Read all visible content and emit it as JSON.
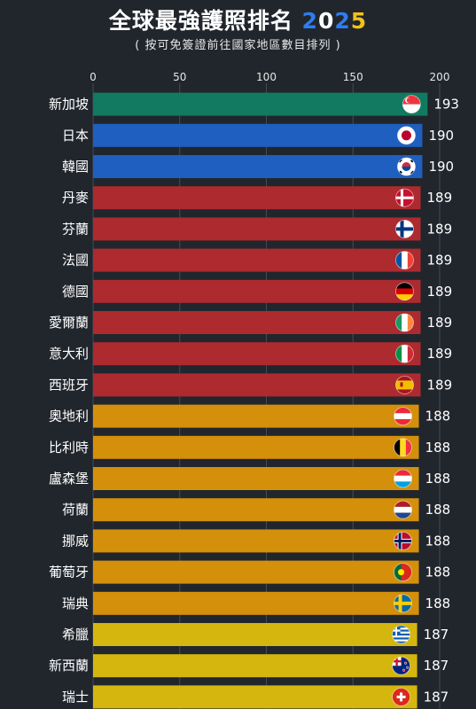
{
  "title_main": "全球最強護照排名 ",
  "title_year": [
    "2",
    "0",
    "2",
    "5"
  ],
  "title_year_colors": [
    "#2e7df0",
    "#ffffff",
    "#2e7df0",
    "#f2c21b"
  ],
  "subtitle": "( 按可免簽證前往國家地區數目排列 )",
  "chart_data": {
    "type": "bar",
    "orientation": "horizontal",
    "xlim": [
      0,
      200
    ],
    "xticks": [
      0,
      50,
      100,
      150,
      200
    ],
    "grid": true,
    "categories": [
      "新加坡",
      "日本",
      "韓國",
      "丹麥",
      "芬蘭",
      "法國",
      "德國",
      "愛爾蘭",
      "意大利",
      "西班牙",
      "奧地利",
      "比利時",
      "盧森堡",
      "荷蘭",
      "挪威",
      "葡萄牙",
      "瑞典",
      "希臘",
      "新西蘭",
      "瑞士"
    ],
    "values": [
      193,
      190,
      190,
      189,
      189,
      189,
      189,
      189,
      189,
      189,
      188,
      188,
      188,
      188,
      188,
      188,
      188,
      187,
      187,
      187
    ],
    "bar_colors": [
      "#127a60",
      "#1f5fbf",
      "#1f5fbf",
      "#ad2a2f",
      "#ad2a2f",
      "#ad2a2f",
      "#ad2a2f",
      "#ad2a2f",
      "#ad2a2f",
      "#ad2a2f",
      "#d4900a",
      "#d4900a",
      "#d4900a",
      "#d4900a",
      "#d4900a",
      "#d4900a",
      "#d4900a",
      "#d5b60e",
      "#d5b60e",
      "#d5b60e"
    ],
    "flags": [
      "singapore-flag",
      "japan-flag",
      "south-korea-flag",
      "denmark-flag",
      "finland-flag",
      "france-flag",
      "germany-flag",
      "ireland-flag",
      "italy-flag",
      "spain-flag",
      "austria-flag",
      "belgium-flag",
      "luxembourg-flag",
      "netherlands-flag",
      "norway-flag",
      "portugal-flag",
      "sweden-flag",
      "greece-flag",
      "new-zealand-flag",
      "switzerland-flag"
    ]
  }
}
